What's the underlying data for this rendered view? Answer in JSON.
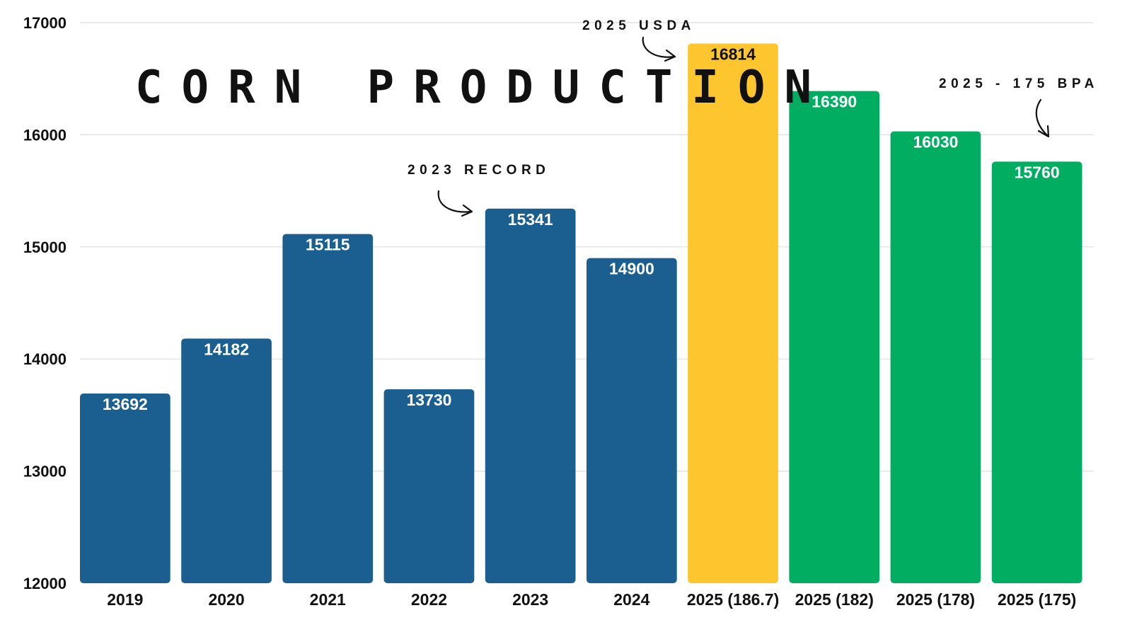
{
  "chart_data": {
    "type": "bar",
    "title": "CORN PRODUCTION",
    "xlabel": "",
    "ylabel": "",
    "ylim": [
      12000,
      17000
    ],
    "yticks": [
      12000,
      13000,
      14000,
      15000,
      16000,
      17000
    ],
    "grid": true,
    "categories": [
      "2019",
      "2020",
      "2021",
      "2022",
      "2023",
      "2024",
      "2025 (186.7)",
      "2025 (182)",
      "2025 (178)",
      "2025 (175)"
    ],
    "values": [
      13692,
      14182,
      15115,
      13730,
      15341,
      14900,
      16814,
      16390,
      16030,
      15760
    ],
    "bar_colors": [
      "#1b5f90",
      "#1b5f90",
      "#1b5f90",
      "#1b5f90",
      "#1b5f90",
      "#1b5f90",
      "#fdc62f",
      "#00ad61",
      "#00ad61",
      "#00ad61"
    ],
    "label_colors": [
      "#ffffff",
      "#ffffff",
      "#ffffff",
      "#ffffff",
      "#ffffff",
      "#ffffff",
      "#111111",
      "#ffffff",
      "#ffffff",
      "#ffffff"
    ],
    "annotations": [
      {
        "text": "2023 RECORD",
        "target_category": "2023"
      },
      {
        "text": "2025 USDA",
        "target_category": "2025 (186.7)"
      },
      {
        "text": "2025 - 175 BPA",
        "target_category": "2025 (175)"
      }
    ]
  }
}
